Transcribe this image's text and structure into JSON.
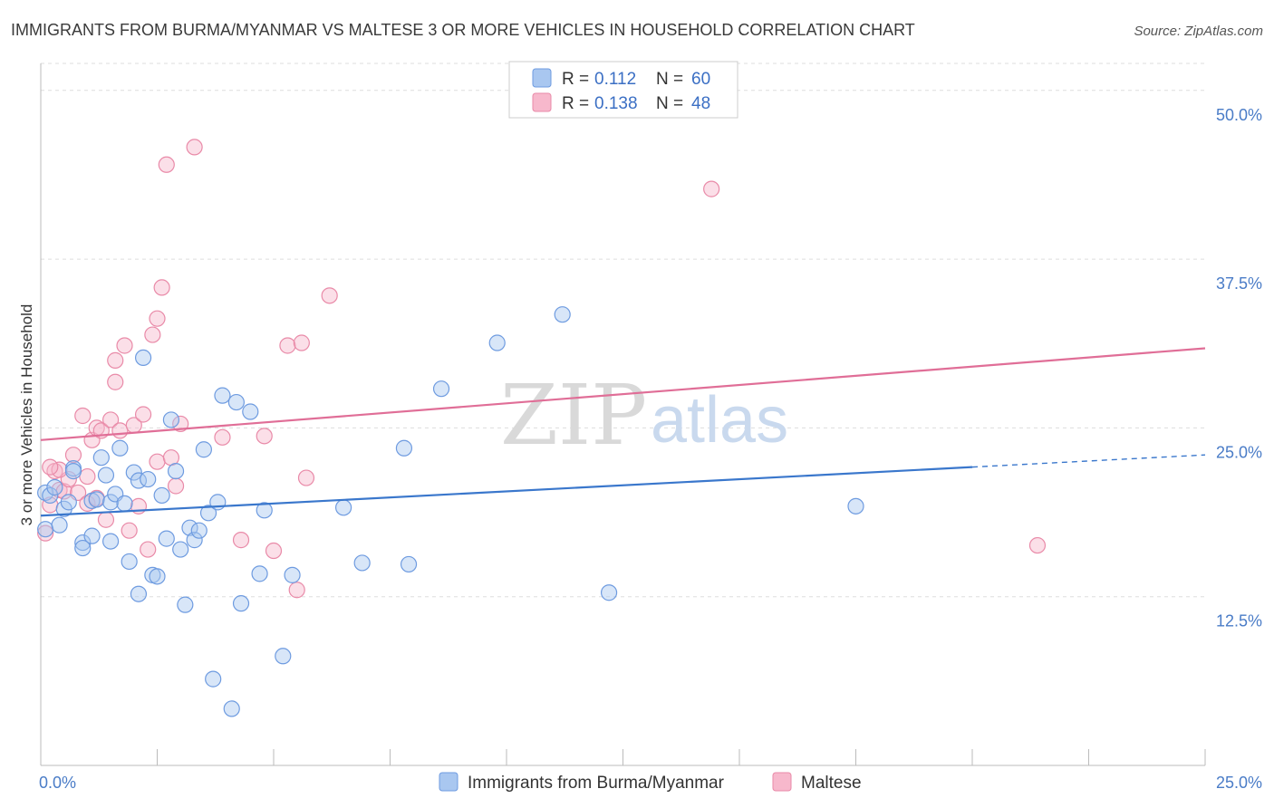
{
  "title": "IMMIGRANTS FROM BURMA/MYANMAR VS MALTESE 3 OR MORE VEHICLES IN HOUSEHOLD CORRELATION CHART",
  "source": "Source: ZipAtlas.com",
  "watermark": {
    "part1": "ZIP",
    "part2": "atlas"
  },
  "legend": {
    "rows": [
      {
        "r_label": "R =",
        "r_value": "0.112",
        "n_label": "N =",
        "n_value": "60"
      },
      {
        "r_label": "R =",
        "r_value": "0.138",
        "n_label": "N =",
        "n_value": "48"
      }
    ]
  },
  "bottom_legend": {
    "series1": "Immigrants from Burma/Myanmar",
    "series2": "Maltese"
  },
  "axis_labels": {
    "x_min": "0.0%",
    "x_max": "25.0%",
    "y_ticks": [
      "12.5%",
      "25.0%",
      "37.5%",
      "50.0%"
    ],
    "ylabel": "3 or more Vehicles in Household"
  },
  "colors": {
    "blue_fill": "#a9c7f0",
    "blue_stroke": "#6e9be0",
    "blue_line": "#3a77cc",
    "pink_fill": "#f7b8cc",
    "pink_stroke": "#e98aa8",
    "pink_line": "#e06e97",
    "grid": "#dddddd",
    "axis": "#bbbbbb"
  },
  "chart_data": {
    "type": "scatter",
    "title": "IMMIGRANTS FROM BURMA/MYANMAR VS MALTESE 3 OR MORE VEHICLES IN HOUSEHOLD CORRELATION CHART",
    "xlabel": "",
    "ylabel": "3 or more Vehicles in Household",
    "xlim": [
      0,
      25
    ],
    "ylim": [
      0,
      52
    ],
    "y_ticks": [
      12.5,
      25.0,
      37.5,
      50.0
    ],
    "grid": true,
    "legend_position": "top-center",
    "series": [
      {
        "name": "Immigrants from Burma/Myanmar",
        "R": 0.112,
        "N": 60,
        "trend": {
          "x0": 0,
          "y0": 18.5,
          "x1": 20,
          "y1": 22.1,
          "dashed_to_x": 25,
          "dashed_to_y": 23.0
        },
        "points": [
          [
            0.1,
            17.5
          ],
          [
            0.1,
            20.2
          ],
          [
            0.2,
            20.0
          ],
          [
            0.3,
            20.6
          ],
          [
            0.4,
            17.8
          ],
          [
            0.5,
            19.0
          ],
          [
            0.6,
            19.5
          ],
          [
            0.7,
            22.0
          ],
          [
            0.7,
            21.8
          ],
          [
            0.9,
            16.5
          ],
          [
            0.9,
            16.1
          ],
          [
            1.1,
            17.0
          ],
          [
            1.1,
            19.6
          ],
          [
            1.2,
            19.7
          ],
          [
            1.3,
            22.8
          ],
          [
            1.4,
            21.5
          ],
          [
            1.5,
            19.5
          ],
          [
            1.5,
            16.6
          ],
          [
            1.6,
            20.1
          ],
          [
            1.7,
            23.5
          ],
          [
            1.8,
            19.4
          ],
          [
            1.9,
            15.1
          ],
          [
            2.0,
            21.7
          ],
          [
            2.1,
            21.1
          ],
          [
            2.1,
            12.7
          ],
          [
            2.2,
            30.2
          ],
          [
            2.3,
            21.2
          ],
          [
            2.4,
            14.1
          ],
          [
            2.5,
            14.0
          ],
          [
            2.6,
            20.0
          ],
          [
            2.7,
            16.8
          ],
          [
            2.8,
            25.6
          ],
          [
            2.9,
            21.8
          ],
          [
            3.0,
            16.0
          ],
          [
            3.1,
            11.9
          ],
          [
            3.2,
            17.6
          ],
          [
            3.3,
            16.7
          ],
          [
            3.4,
            17.4
          ],
          [
            3.5,
            23.4
          ],
          [
            3.6,
            18.7
          ],
          [
            3.7,
            6.4
          ],
          [
            3.8,
            19.5
          ],
          [
            3.9,
            27.4
          ],
          [
            4.1,
            4.2
          ],
          [
            4.2,
            26.9
          ],
          [
            4.3,
            12.0
          ],
          [
            4.5,
            26.2
          ],
          [
            4.7,
            14.2
          ],
          [
            4.8,
            18.9
          ],
          [
            5.2,
            8.1
          ],
          [
            5.4,
            14.1
          ],
          [
            6.5,
            19.1
          ],
          [
            6.9,
            15.0
          ],
          [
            7.8,
            23.5
          ],
          [
            7.9,
            14.9
          ],
          [
            8.6,
            27.9
          ],
          [
            9.8,
            31.3
          ],
          [
            11.2,
            33.4
          ],
          [
            12.2,
            12.8
          ],
          [
            17.5,
            19.2
          ]
        ]
      },
      {
        "name": "Maltese",
        "R": 0.138,
        "N": 48,
        "trend": {
          "x0": 0,
          "y0": 24.1,
          "x1": 25,
          "y1": 30.9
        },
        "points": [
          [
            0.1,
            17.2
          ],
          [
            0.2,
            19.3
          ],
          [
            0.3,
            21.8
          ],
          [
            0.4,
            20.4
          ],
          [
            0.5,
            20.3
          ],
          [
            0.6,
            21.2
          ],
          [
            0.7,
            23.0
          ],
          [
            0.8,
            20.2
          ],
          [
            0.9,
            25.9
          ],
          [
            1.0,
            19.4
          ],
          [
            1.1,
            24.1
          ],
          [
            1.2,
            19.8
          ],
          [
            1.2,
            25.0
          ],
          [
            1.3,
            24.8
          ],
          [
            1.4,
            18.2
          ],
          [
            1.5,
            25.6
          ],
          [
            1.6,
            28.4
          ],
          [
            1.6,
            30.0
          ],
          [
            1.7,
            24.8
          ],
          [
            1.8,
            31.1
          ],
          [
            1.9,
            17.4
          ],
          [
            2.0,
            25.2
          ],
          [
            2.1,
            19.2
          ],
          [
            2.2,
            26.0
          ],
          [
            2.3,
            16.0
          ],
          [
            2.4,
            31.9
          ],
          [
            2.5,
            22.5
          ],
          [
            2.5,
            33.1
          ],
          [
            2.6,
            35.4
          ],
          [
            2.7,
            44.5
          ],
          [
            2.8,
            22.8
          ],
          [
            3.0,
            25.3
          ],
          [
            3.3,
            45.8
          ],
          [
            3.9,
            24.3
          ],
          [
            4.3,
            16.7
          ],
          [
            4.8,
            24.4
          ],
          [
            5.0,
            15.9
          ],
          [
            5.3,
            31.1
          ],
          [
            5.5,
            13.0
          ],
          [
            5.6,
            31.3
          ],
          [
            5.7,
            21.3
          ],
          [
            6.2,
            34.8
          ],
          [
            14.4,
            42.7
          ],
          [
            21.4,
            16.3
          ],
          [
            0.4,
            21.9
          ],
          [
            1.0,
            21.4
          ],
          [
            0.2,
            22.1
          ],
          [
            2.9,
            20.7
          ]
        ]
      }
    ]
  }
}
